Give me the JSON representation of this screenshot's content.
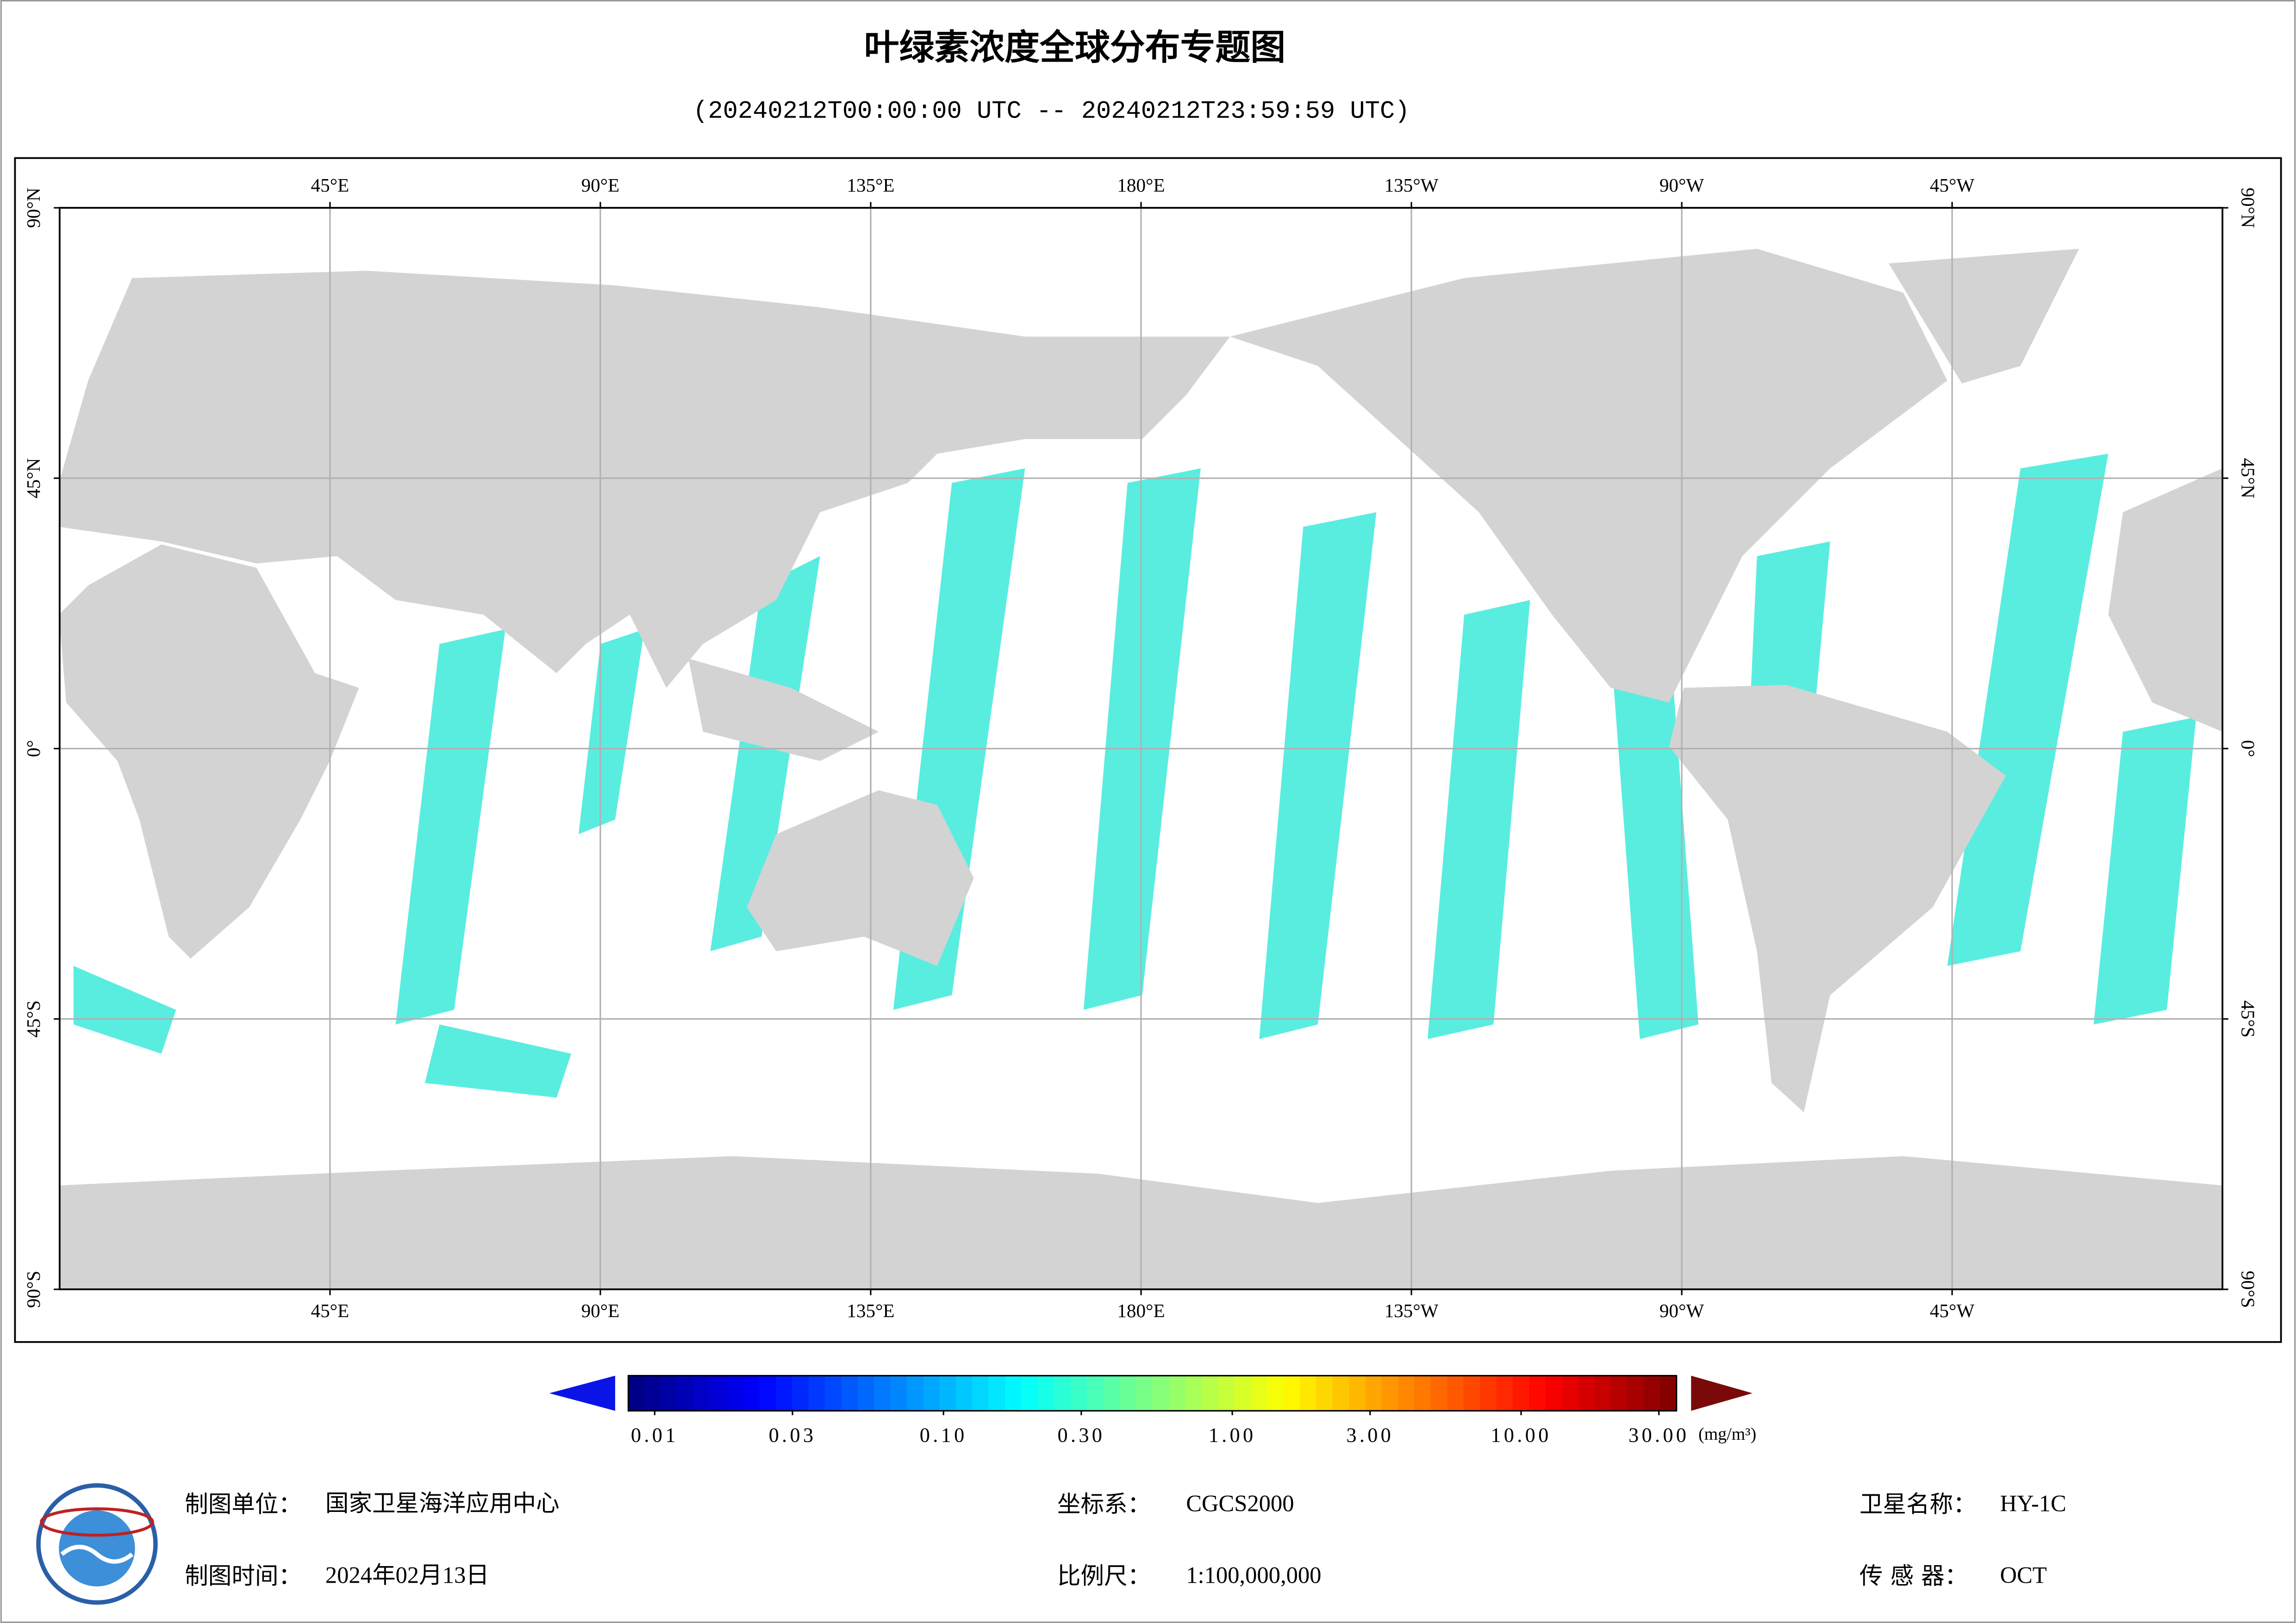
{
  "map": {
    "title": "叶绿素浓度全球分布专题图",
    "subtitle": "(20240212T00:00:00 UTC -- 20240212T23:59:59 UTC)",
    "xlim": [
      0,
      360
    ],
    "ylim": [
      -90,
      90
    ],
    "grid": true,
    "lon_ticks": [
      {
        "value": 45,
        "label": "45°E"
      },
      {
        "value": 90,
        "label": "90°E"
      },
      {
        "value": 135,
        "label": "135°E"
      },
      {
        "value": 180,
        "label": "180°E"
      },
      {
        "value": 225,
        "label": "135°W"
      },
      {
        "value": 270,
        "label": "90°W"
      },
      {
        "value": 315,
        "label": "45°W"
      }
    ],
    "lat_ticks": [
      {
        "value": 90,
        "label": "90°N"
      },
      {
        "value": 45,
        "label": "45°N"
      },
      {
        "value": 0,
        "label": "0°"
      },
      {
        "value": -45,
        "label": "45°S"
      },
      {
        "value": -90,
        "label": "90°S"
      }
    ],
    "colorbar": {
      "log_scale": true,
      "ticks": [
        0.01,
        0.03,
        {
          "value": 0.1,
          "label": "0.10"
        },
        {
          "value": 0.3,
          "label": "0.30"
        },
        {
          "value": 1,
          "label": "1.00"
        },
        {
          "value": 3,
          "label": "3.00"
        },
        {
          "value": 10,
          "label": "10.00"
        },
        {
          "value": 30,
          "label": "30.00"
        }
      ],
      "unit": "(mg/m³)"
    }
  },
  "footer": [
    {
      "label": "制图单位：",
      "value": "国家卫星海洋应用中心"
    },
    {
      "label": "坐标系：",
      "value": "CGCS2000"
    },
    {
      "label": "卫星名称：",
      "value": "HY-1C"
    },
    {
      "label": "制图时间：",
      "value": "2024年02月13日"
    },
    {
      "label": "比例尺：",
      "value": "1:100,000,000"
    },
    {
      "label": "传 感 器：",
      "value": "OCT"
    }
  ]
}
